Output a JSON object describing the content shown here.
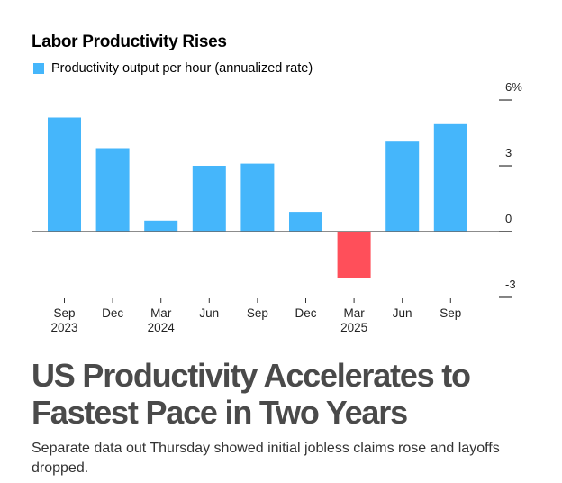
{
  "chart_data": {
    "type": "bar",
    "title": "Labor Productivity Rises",
    "legend": [
      {
        "label": "Productivity output per hour (annualized rate)",
        "color": "#45b6fb"
      }
    ],
    "legend_placement": "top-left",
    "categories": [
      "Sep 2023",
      "Dec 2023",
      "Mar 2024",
      "Jun 2024",
      "Sep 2024",
      "Dec 2024",
      "Mar 2025",
      "Jun 2025",
      "Sep 2025"
    ],
    "x_tick_labels": [
      {
        "line1": "Sep",
        "line2": "2023"
      },
      {
        "line1": "Dec",
        "line2": ""
      },
      {
        "line1": "Mar",
        "line2": "2024"
      },
      {
        "line1": "Jun",
        "line2": ""
      },
      {
        "line1": "Sep",
        "line2": ""
      },
      {
        "line1": "Dec",
        "line2": ""
      },
      {
        "line1": "Mar",
        "line2": "2025"
      },
      {
        "line1": "Jun",
        "line2": ""
      },
      {
        "line1": "Sep",
        "line2": ""
      }
    ],
    "series": [
      {
        "name": "Productivity output per hour (annualized rate)",
        "values": [
          5.2,
          3.8,
          0.5,
          3.0,
          3.1,
          0.9,
          -2.1,
          4.1,
          4.9
        ]
      }
    ],
    "positive_color": "#45b6fb",
    "negative_color": "#ff4f5a",
    "y_ticks": [
      6,
      3,
      0,
      -3
    ],
    "y_tick_labels": [
      "6%",
      "3",
      "0",
      "-3"
    ],
    "ylim": [
      -3,
      6
    ],
    "y_axis_position": "right",
    "xlabel": "",
    "ylabel": "",
    "grid": false
  },
  "article": {
    "headline": "US Productivity Accelerates to Fastest Pace in Two Years",
    "dek": "Separate data out Thursday showed initial jobless claims rose and layoffs dropped."
  }
}
